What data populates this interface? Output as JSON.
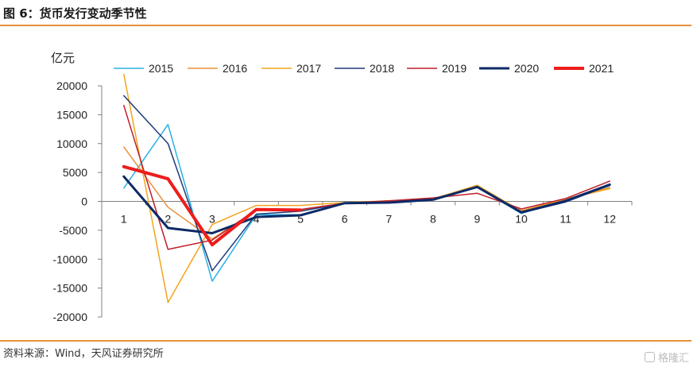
{
  "header": {
    "title": "图 6：货币发行变动季节性"
  },
  "footer": {
    "source": "资料来源：Wind，天风证券研究所"
  },
  "watermark": {
    "text": "格隆汇",
    "icon": "gelonghui-logo-icon"
  },
  "chart_data": {
    "type": "line",
    "title": "图 6：货币发行变动季节性",
    "ylabel": "亿元",
    "xlabel": "",
    "ylim": [
      -20000,
      20000
    ],
    "yticks": [
      20000,
      15000,
      10000,
      5000,
      0,
      -5000,
      -10000,
      -15000,
      -20000
    ],
    "categories": [
      "1",
      "2",
      "3",
      "4",
      "5",
      "6",
      "7",
      "8",
      "9",
      "10",
      "11",
      "12"
    ],
    "legend_position": "top",
    "grid": false,
    "series": [
      {
        "name": "2015",
        "color": "#2bb1e4",
        "width": 1.5,
        "values": [
          2300,
          13300,
          -13800,
          -2300,
          -2300,
          -300,
          -200,
          400,
          2400,
          -2100,
          300,
          2700
        ]
      },
      {
        "name": "2016",
        "color": "#e8903a",
        "width": 1.5,
        "values": [
          9400,
          -1000,
          -6500,
          -1500,
          -1500,
          -300,
          -100,
          500,
          2600,
          -1600,
          400,
          2400
        ]
      },
      {
        "name": "2017",
        "color": "#f3a51c",
        "width": 1.5,
        "values": [
          22000,
          -17500,
          -4000,
          -700,
          -700,
          -200,
          100,
          400,
          2800,
          -1700,
          400,
          2200
        ]
      },
      {
        "name": "2018",
        "color": "#1f3a7a",
        "width": 1.5,
        "values": [
          18300,
          10000,
          -12000,
          -2200,
          -1700,
          -300,
          -100,
          400,
          2500,
          -1800,
          200,
          3000
        ]
      },
      {
        "name": "2019",
        "color": "#c01e2a",
        "width": 1.5,
        "values": [
          16600,
          -8300,
          -6700,
          -1400,
          -1400,
          -300,
          100,
          600,
          1400,
          -1300,
          500,
          3500
        ]
      },
      {
        "name": "2020",
        "color": "#0d2a66",
        "width": 3,
        "values": [
          4300,
          -4600,
          -5500,
          -2700,
          -2400,
          -300,
          -200,
          300,
          2500,
          -1900,
          0,
          2900
        ]
      },
      {
        "name": "2021",
        "color": "#ee1c1c",
        "width": 4,
        "values": [
          6000,
          3900,
          -7500,
          -1400,
          -1500,
          null,
          null,
          null,
          null,
          null,
          null,
          null
        ]
      }
    ]
  }
}
